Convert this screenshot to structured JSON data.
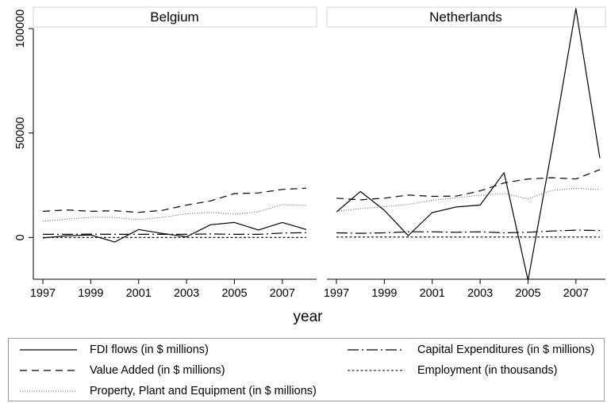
{
  "chart_data": {
    "type": "line",
    "xlabel": "year",
    "ylabel": "",
    "x_ticks": [
      "1997",
      "1999",
      "2001",
      "2003",
      "2005",
      "2007"
    ],
    "y_ticks": [
      "0",
      "50000",
      "100000"
    ],
    "ylim": [
      -20000,
      100000
    ],
    "xlim": [
      1997,
      2008
    ],
    "grid": false,
    "legend_position": "bottom",
    "x": [
      1997,
      1998,
      1999,
      2000,
      2001,
      2002,
      2003,
      2004,
      2005,
      2006,
      2007,
      2008
    ],
    "panels": [
      {
        "title": "Belgium",
        "series": [
          {
            "name": "FDI flows (in $ millions)",
            "style": "solid",
            "values": [
              -200,
              800,
              1200,
              -2200,
              3800,
              1900,
              300,
              6100,
              7200,
              3600,
              7200,
              3800
            ]
          },
          {
            "name": "Value Added (in $ millions)",
            "style": "dash",
            "values": [
              12500,
              13200,
              12500,
              12800,
              12000,
              13000,
              15500,
              17500,
              21000,
              21300,
              23000,
              23600
            ]
          },
          {
            "name": "Capital Expenditures (in $ millions)",
            "style": "dashdot",
            "values": [
              1500,
              1500,
              1600,
              1500,
              1500,
              1500,
              1500,
              1700,
              1500,
              1500,
              2100,
              2300
            ]
          },
          {
            "name": "Employment (in thousands)",
            "style": "dot",
            "values": [
              30,
              30,
              30,
              30,
              30,
              30,
              30,
              30,
              30,
              30,
              30,
              30
            ]
          },
          {
            "name": "Property, Plant and Equipment (in $ millions)",
            "style": "dotted",
            "values": [
              7800,
              8800,
              9700,
              9600,
              8500,
              9700,
              11300,
              12000,
              11100,
              12300,
              15700,
              15300
            ]
          }
        ]
      },
      {
        "title": "Netherlands",
        "series": [
          {
            "name": "FDI flows (in $ millions)",
            "style": "solid",
            "values": [
              12200,
              22000,
              13000,
              900,
              11900,
              14600,
              15500,
              31000,
              -20500,
              42500,
              109500,
              38000
            ]
          },
          {
            "name": "Value Added (in $ millions)",
            "style": "dash",
            "values": [
              18800,
              18000,
              18800,
              20300,
              19700,
              19800,
              22300,
              26100,
              28000,
              28600,
              28000,
              32500
            ]
          },
          {
            "name": "Capital Expenditures (in $ millions)",
            "style": "dashdot",
            "values": [
              2200,
              2000,
              2200,
              2700,
              2700,
              2500,
              2700,
              2200,
              2500,
              3100,
              3500,
              3300
            ]
          },
          {
            "name": "Employment (in thousands)",
            "style": "dot",
            "values": [
              200,
              200,
              200,
              200,
              200,
              200,
              200,
              200,
              200,
              200,
              200,
              200
            ]
          },
          {
            "name": "Property, Plant and Equipment (in $ millions)",
            "style": "dotted",
            "values": [
              12500,
              13800,
              14800,
              15800,
              17800,
              19000,
              20200,
              21000,
              18500,
              22500,
              23500,
              22800
            ]
          }
        ]
      }
    ],
    "legend": [
      {
        "label": "FDI flows (in $ millions)",
        "style": "solid"
      },
      {
        "label": "Capital Expenditures (in $ millions)",
        "style": "dashdot"
      },
      {
        "label": "Value Added (in $ millions)",
        "style": "dash"
      },
      {
        "label": "Employment (in thousands)",
        "style": "dot"
      },
      {
        "label": "Property, Plant and Equipment (in $ millions)",
        "style": "dotted"
      }
    ]
  }
}
